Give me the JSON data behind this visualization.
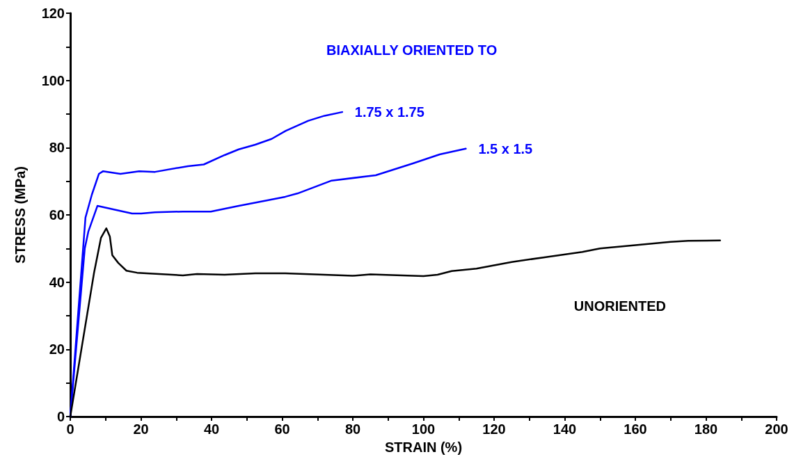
{
  "chart_data": {
    "type": "line",
    "xlabel": "STRAIN (%)",
    "ylabel": "STRESS (MPa)",
    "annotations": [
      "BIAXIALLY ORIENTED TO"
    ],
    "xlim": [
      0,
      200
    ],
    "ylim": [
      0,
      120
    ],
    "xticks": [
      0,
      {
        "value": 10,
        "label": null
      },
      20,
      {
        "value": 30,
        "label": null
      },
      40,
      {
        "value": 50,
        "label": null
      },
      60,
      {
        "value": 70,
        "label": null
      },
      80,
      {
        "value": 90,
        "label": null
      },
      100,
      {
        "value": 110,
        "label": null
      },
      120,
      {
        "value": 130,
        "label": null
      },
      140,
      {
        "value": 150,
        "label": null
      },
      160,
      {
        "value": 170,
        "label": null
      },
      180,
      {
        "value": 190,
        "label": null
      },
      200
    ],
    "yticks": [
      0,
      {
        "value": 10,
        "label": null
      },
      20,
      {
        "value": 30,
        "label": null
      },
      40,
      {
        "value": 50,
        "label": null
      },
      60,
      {
        "value": 70,
        "label": null
      },
      80,
      {
        "value": 90,
        "label": null
      },
      100,
      {
        "value": 110,
        "label": null
      },
      120
    ],
    "grid": false,
    "legend": false,
    "marker": "none",
    "line_style": "solid",
    "series": [
      {
        "name": "1.75 x 1.75",
        "color": "#0000ff",
        "x": [
          0,
          4.3,
          6.1,
          8.1,
          9.3,
          14.2,
          19.5,
          24,
          33.3,
          37.8,
          43.7,
          47.7,
          52.4,
          57,
          61,
          67.4,
          72,
          77
        ],
        "values": [
          0,
          59.2,
          66,
          72.2,
          73,
          72.2,
          73,
          72.8,
          74.5,
          75,
          77.8,
          79.5,
          80.9,
          82.6,
          85,
          88,
          89.5,
          90.6
        ]
      },
      {
        "name": "1.5 x 1.5",
        "color": "#0000ff",
        "x": [
          0,
          4.1,
          5.1,
          7.7,
          17.5,
          20.1,
          24,
          31.9,
          39.8,
          47.7,
          55.6,
          60.9,
          64.4,
          74,
          86.5,
          97,
          104.6,
          112
        ],
        "values": [
          0,
          50,
          55,
          62.7,
          60.4,
          60.4,
          60.8,
          61,
          61,
          62.7,
          64.3,
          65.4,
          66.4,
          70.2,
          71.8,
          75.3,
          78,
          79.7
        ]
      },
      {
        "name": "UNORIENTED",
        "color": "#000000",
        "x": [
          0,
          6.7,
          8.7,
          10.2,
          11.2,
          11.9,
          13.6,
          15.9,
          18.9,
          31.9,
          35.9,
          43.7,
          52.4,
          60.9,
          80,
          85,
          100,
          104,
          108,
          115,
          125,
          135,
          145,
          150,
          160,
          170,
          175,
          184
        ],
        "values": [
          0,
          42.6,
          53.2,
          56,
          53.6,
          48,
          45.7,
          43.4,
          42.8,
          42,
          42.4,
          42.2,
          42.6,
          42.6,
          41.9,
          42.3,
          41.8,
          42.2,
          43.3,
          44,
          46,
          47.5,
          49,
          50,
          51,
          52,
          52.3,
          52.4
        ]
      }
    ]
  }
}
